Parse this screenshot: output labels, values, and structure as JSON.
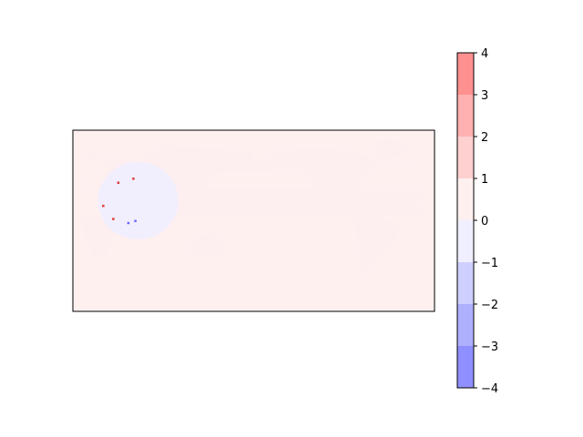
{
  "chart_data": {
    "type": "heatmap",
    "title": "",
    "xlabel": "",
    "ylabel": "",
    "map": {
      "projection": "plate-carree",
      "field_description_visible": "near-zero anomaly field over a global map; faint positive values over most ocean, slightly negative region in a circular patch",
      "background_value_ocean": 0.3,
      "background_value_land": 0.15,
      "anomaly_patch_value": -0.6,
      "extreme_points": [
        {
          "value": 2.5
        },
        {
          "value": 3.2
        },
        {
          "value": 1.6
        },
        {
          "value": 2.2
        },
        {
          "value": -1.8
        },
        {
          "value": -2.4
        }
      ]
    },
    "colorbar": {
      "ticks": [
        "−4",
        "−3",
        "−2",
        "−1",
        "0",
        "1",
        "2",
        "3",
        "4"
      ],
      "levels": [
        -4,
        -3,
        -2,
        -1,
        0,
        1,
        2,
        3,
        4
      ],
      "range": [
        -4,
        4
      ],
      "colors": [
        "#8f8fff",
        "#afafff",
        "#cfcfff",
        "#efefff",
        "#fff0f0",
        "#ffd0d0",
        "#ffb0b0",
        "#ff9090"
      ]
    }
  },
  "colors": {
    "axes_edge": "#000000",
    "land_tint": "#fdeef0",
    "ocean_tint": "#fff0f0"
  }
}
